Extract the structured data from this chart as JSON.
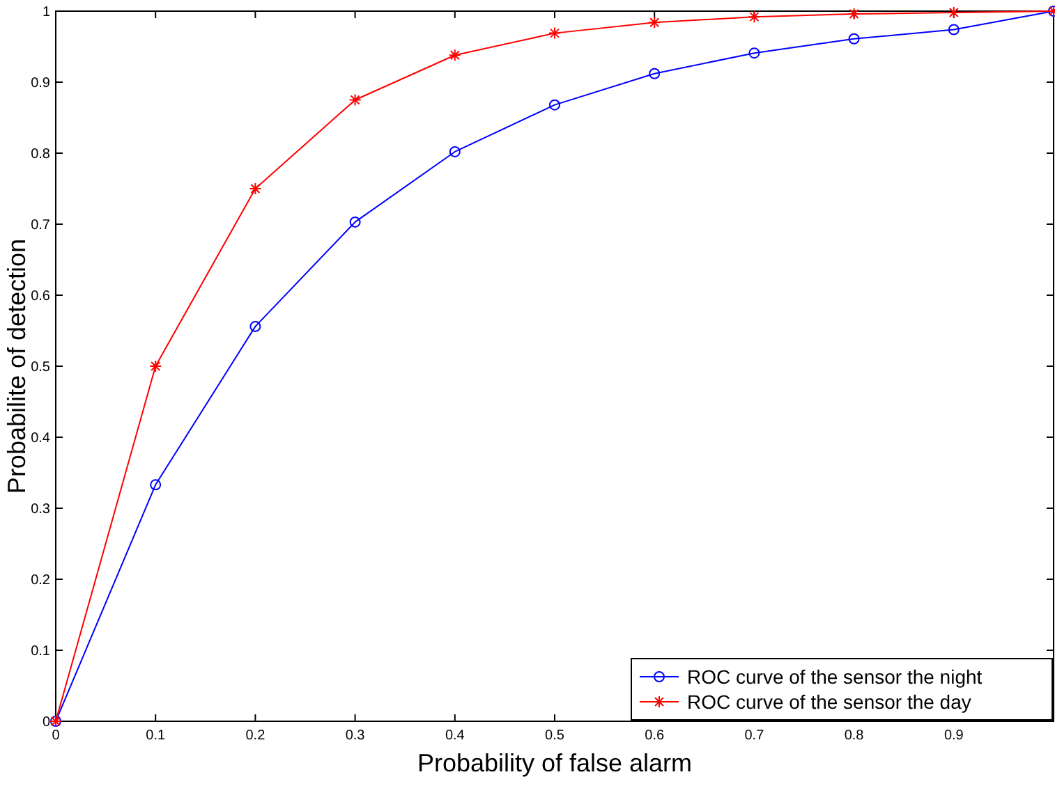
{
  "chart_data": {
    "type": "line",
    "xlabel": "Probability of false alarm",
    "ylabel": "Probabilite of detection",
    "x": [
      0,
      0.1,
      0.2,
      0.3,
      0.4,
      0.5,
      0.6,
      0.7,
      0.8,
      0.9,
      1
    ],
    "xlim": [
      0,
      1
    ],
    "ylim": [
      0,
      1
    ],
    "xticks": [
      0,
      0.1,
      0.2,
      0.3,
      0.4,
      0.5,
      0.6,
      0.7,
      0.8,
      0.9,
      {
        "value": 1,
        "label": null
      }
    ],
    "yticks": [
      0,
      0.1,
      0.2,
      0.3,
      0.4,
      0.5,
      0.6,
      0.7,
      0.8,
      0.9,
      1
    ],
    "grid": false,
    "legend": "bottom right",
    "series": [
      {
        "name": "ROC curve of the sensor the night",
        "color": "#0000ff",
        "marker": "circle",
        "values": [
          0,
          0.333,
          0.556,
          0.703,
          0.802,
          0.868,
          0.912,
          0.941,
          0.961,
          0.974,
          1
        ]
      },
      {
        "name": "ROC curve of the sensor the day",
        "color": "#ff0000",
        "marker": "cross",
        "values": [
          0,
          0.5,
          0.75,
          0.875,
          0.938,
          0.969,
          0.984,
          0.992,
          0.996,
          0.998,
          1
        ]
      }
    ]
  }
}
